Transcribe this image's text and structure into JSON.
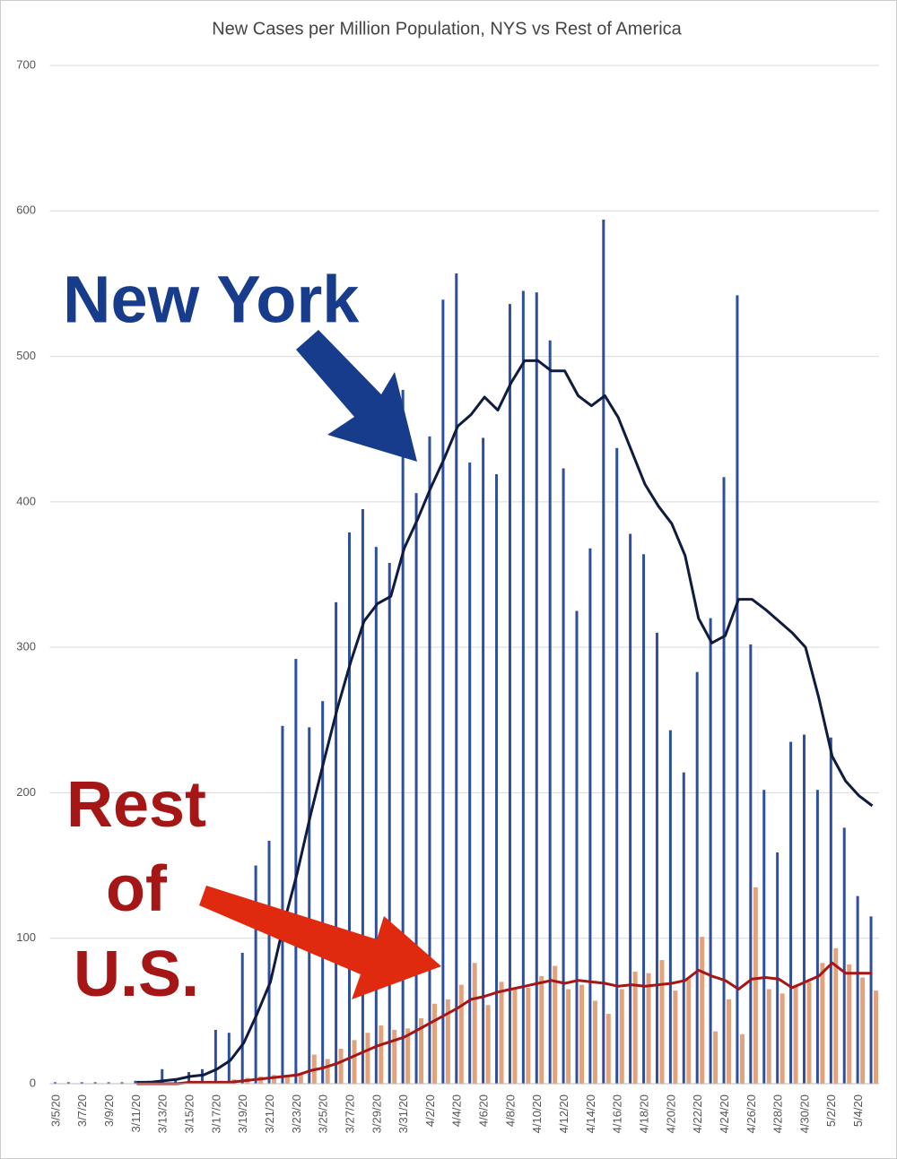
{
  "chart_data": {
    "type": "bar",
    "title": "New Cases per Million Population,  NYS vs Rest of America",
    "annotations": {
      "new_york": "New York",
      "rest": [
        "Rest",
        "of",
        "U.S."
      ]
    },
    "categories": [
      "3/5/20",
      null,
      "3/7/20",
      null,
      "3/9/20",
      null,
      "3/11/20",
      null,
      "3/13/20",
      null,
      "3/15/20",
      null,
      "3/17/20",
      null,
      "3/19/20",
      null,
      "3/21/20",
      null,
      "3/23/20",
      null,
      "3/25/20",
      null,
      "3/27/20",
      null,
      "3/29/20",
      null,
      "3/31/20",
      null,
      "4/2/20",
      null,
      "4/4/20",
      null,
      "4/6/20",
      null,
      "4/8/20",
      null,
      "4/10/20",
      null,
      "4/12/20",
      null,
      "4/14/20",
      null,
      "4/16/20",
      null,
      "4/18/20",
      null,
      "4/20/20",
      null,
      "4/22/20",
      null,
      "4/24/20",
      null,
      "4/26/20",
      null,
      "4/28/20",
      null,
      "4/30/20",
      null,
      "5/2/20",
      null,
      "5/4/20",
      null
    ],
    "series": [
      {
        "type": "bar",
        "color": "#2d4f9e",
        "values": [
          1,
          1,
          1,
          1,
          1,
          1,
          2,
          2,
          10,
          3,
          8,
          10,
          37,
          35,
          90,
          150,
          167,
          246,
          292,
          245,
          263,
          331,
          379,
          395,
          369,
          358,
          477,
          406,
          445,
          539,
          557,
          427,
          444,
          419,
          536,
          545,
          544,
          511,
          423,
          325,
          368,
          594,
          437,
          378,
          364,
          310,
          243,
          214,
          283,
          320,
          417,
          542,
          302,
          202,
          159,
          235,
          240,
          202,
          238,
          176,
          129,
          115
        ]
      },
      {
        "type": "bar",
        "color": "#e2a27c",
        "values": [
          0,
          0,
          0,
          0,
          0,
          0,
          0,
          0,
          0,
          0,
          1,
          1,
          2,
          3,
          4,
          5,
          6,
          6,
          7,
          20,
          17,
          24,
          30,
          35,
          40,
          37,
          38,
          45,
          55,
          58,
          68,
          83,
          54,
          70,
          65,
          66,
          74,
          81,
          65,
          68,
          57,
          48,
          65,
          77,
          76,
          85,
          64,
          72,
          101,
          36,
          58,
          34,
          135,
          65,
          62,
          68,
          70,
          83,
          93,
          82,
          73,
          64
        ]
      },
      {
        "type": "line",
        "color": "#0f1c3f",
        "values": [
          null,
          null,
          null,
          null,
          null,
          null,
          1,
          1,
          2,
          3,
          5,
          6,
          10,
          16,
          28,
          48,
          70,
          110,
          145,
          185,
          222,
          258,
          290,
          318,
          330,
          335,
          368,
          388,
          410,
          430,
          452,
          460,
          472,
          463,
          482,
          497,
          497,
          490,
          490,
          473,
          466,
          473,
          458,
          435,
          412,
          397,
          385,
          363,
          320,
          303,
          308,
          333,
          333,
          326,
          318,
          310,
          300,
          265,
          225,
          208,
          198,
          191
        ]
      },
      {
        "type": "line",
        "color": "#a51616",
        "values": [
          null,
          null,
          null,
          null,
          null,
          null,
          0,
          0,
          0,
          0,
          1,
          1,
          1,
          1,
          2,
          3,
          4,
          5,
          6,
          9,
          11,
          14,
          18,
          22,
          26,
          29,
          32,
          37,
          42,
          47,
          52,
          58,
          60,
          63,
          65,
          67,
          69,
          71,
          69,
          71,
          70,
          69,
          67,
          68,
          67,
          68,
          69,
          71,
          78,
          74,
          71,
          65,
          72,
          73,
          72,
          66,
          70,
          74,
          83,
          76,
          76,
          76
        ]
      }
    ],
    "ylim": [
      0,
      700
    ],
    "yticks": [
      0,
      100,
      200,
      300,
      400,
      500,
      600,
      700
    ],
    "grid": true
  }
}
